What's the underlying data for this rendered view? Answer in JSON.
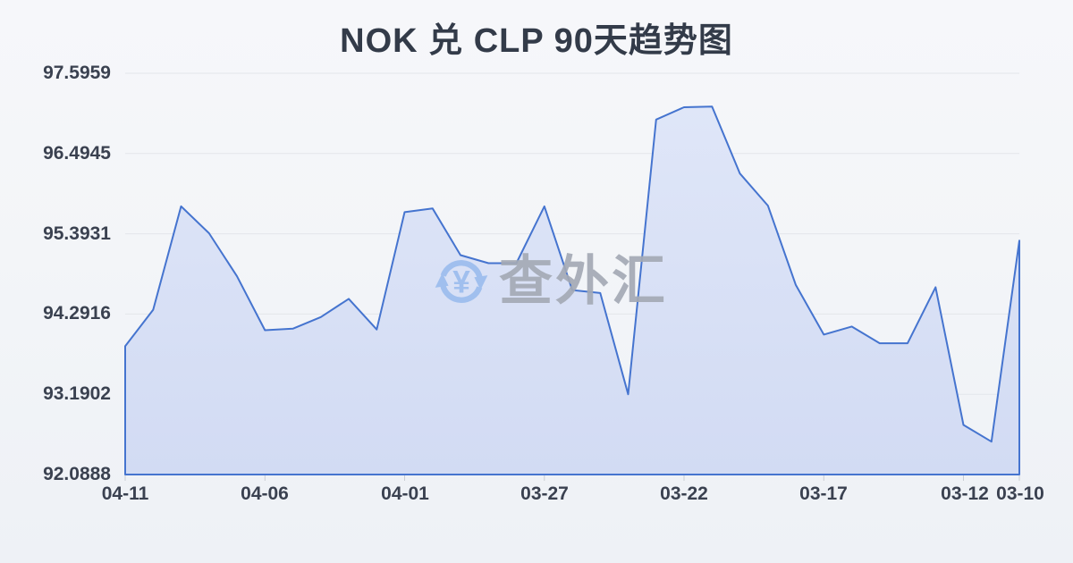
{
  "title": "NOK 兑 CLP 90天趋势图",
  "watermark": {
    "brand": "查外汇",
    "currency_symbol": "¥"
  },
  "colors": {
    "background": "#f3f5f8",
    "line": "#4574cf",
    "fill_top": "#dfe6f8",
    "fill_bottom": "#d2dbf3",
    "grid": "#e3e6eb",
    "tick": "#c9cdd4",
    "text": "#3a4150",
    "title_text": "#333b49",
    "watermark_blue": "#9cbdee",
    "watermark_gray": "#a4aab5"
  },
  "chart_data": {
    "type": "area",
    "title": "NOK 兑 CLP 90天趋势图",
    "xlabel": "",
    "ylabel": "",
    "x_axis_direction": "newest date on left, oldest on right",
    "grid": true,
    "legend": false,
    "ylim": [
      92.0888,
      97.5959
    ],
    "x": [
      "04-11",
      "04-10",
      "04-09",
      "04-08",
      "04-07",
      "04-06",
      "04-05",
      "04-04",
      "04-03",
      "04-02",
      "04-01",
      "03-31",
      "03-30",
      "03-29",
      "03-28",
      "03-27",
      "03-26",
      "03-25",
      "03-24",
      "03-23",
      "03-22",
      "03-21",
      "03-20",
      "03-19",
      "03-18",
      "03-17",
      "03-16",
      "03-15",
      "03-14",
      "03-13",
      "03-12",
      "03-11",
      "03-10"
    ],
    "values": [
      93.85,
      94.35,
      95.77,
      95.4,
      94.81,
      94.07,
      94.09,
      94.25,
      94.5,
      94.08,
      95.69,
      95.74,
      95.1,
      94.99,
      94.99,
      95.77,
      94.62,
      94.58,
      93.19,
      96.96,
      97.13,
      97.14,
      96.22,
      95.78,
      94.69,
      94.01,
      94.12,
      93.89,
      93.89,
      94.66,
      92.77,
      92.54,
      95.3
    ],
    "y_tick_values": [
      97.5959,
      96.4945,
      95.3931,
      94.2916,
      93.1902,
      92.0888
    ],
    "y_tick_labels": [
      "97.5959",
      "96.4945",
      "95.3931",
      "94.2916",
      "93.1902",
      "92.0888"
    ],
    "x_tick_labels": [
      "04-11",
      "04-06",
      "04-01",
      "03-27",
      "03-22",
      "03-17",
      "03-12",
      "03-10"
    ],
    "x_tick_indices": [
      0,
      5,
      10,
      15,
      20,
      25,
      30,
      32
    ]
  }
}
